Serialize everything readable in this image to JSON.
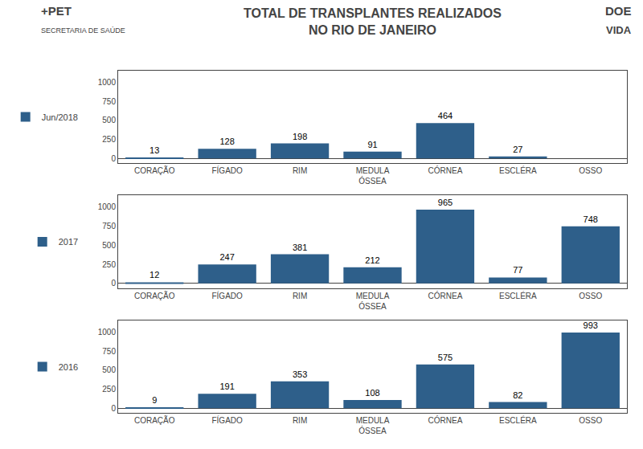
{
  "chart_data": [
    {
      "type": "bar",
      "title": "TOTAL DE TRANSPLANTES REALIZADOS\nNO RIO DE JANEIRO",
      "annotations": [
        "+PET",
        "SECRETARIA DE SAÚDE",
        "DOE",
        "VIDA"
      ],
      "categories": [
        "CORAÇÃO",
        "FÍGADO",
        "RIM",
        "MEDULA\nÓSSEA",
        "CÓRNEA",
        "ESCLÉRA",
        "OSSO"
      ],
      "series": [
        {
          "name": "Jun/2018",
          "color": "#2E5F8A",
          "values": [
            13,
            128,
            198,
            91,
            464,
            27,
            0
          ],
          "value_labels": [
            "13",
            "128",
            "198",
            "91",
            "464",
            "27",
            null
          ]
        }
      ],
      "ylim": [
        -60,
        1150
      ],
      "yticks": [
        0,
        250,
        500,
        750,
        1000
      ],
      "grid": false,
      "data_labels": true,
      "legend": "left"
    },
    {
      "type": "bar",
      "categories": [
        "CORAÇÃO",
        "FÍGADO",
        "RIM",
        "MEDULA\nÓSSEA",
        "CÓRNEA",
        "ESCLÉRA",
        "OSSO"
      ],
      "series": [
        {
          "name": "2017",
          "color": "#2E5F8A",
          "values": [
            12,
            247,
            381,
            212,
            965,
            77,
            748
          ]
        }
      ],
      "ylim": [
        -60,
        1150
      ],
      "yticks": [
        0,
        250,
        500,
        750,
        1000
      ],
      "grid": false,
      "data_labels": true,
      "legend": "left"
    },
    {
      "type": "bar",
      "categories": [
        "CORAÇÃO",
        "FÍGADO",
        "RIM",
        "MEDULA\nÓSSEA",
        "CÓRNEA",
        "ESCLÉRA",
        "OSSO"
      ],
      "series": [
        {
          "name": "2016",
          "color": "#2E5F8A",
          "values": [
            9,
            191,
            353,
            108,
            575,
            82,
            993
          ]
        }
      ],
      "ylim": [
        -60,
        1150
      ],
      "yticks": [
        0,
        250,
        500,
        750,
        1000
      ],
      "grid": false,
      "data_labels": true,
      "legend": "left"
    }
  ]
}
